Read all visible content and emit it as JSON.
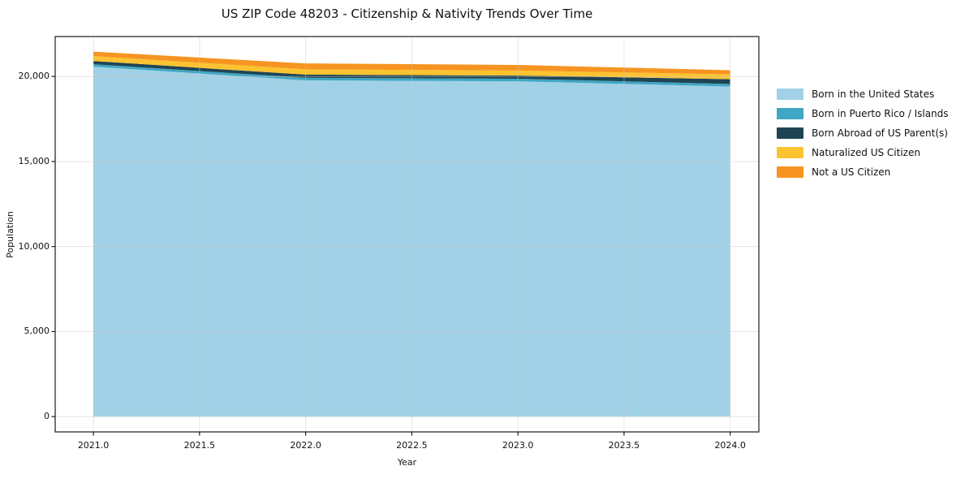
{
  "figure": {
    "background_color": "#ffffff",
    "text_color": "#111111"
  },
  "chart_data": {
    "type": "area",
    "stacked": true,
    "title": "US ZIP Code 48203 - Citizenship & Nativity Trends Over Time",
    "xlabel": "Year",
    "ylabel": "Population",
    "x": [
      2021,
      2022,
      2023,
      2024
    ],
    "series": [
      {
        "name": "Born in the United States",
        "color": "#a1d1e6",
        "values": [
          20580,
          19770,
          19720,
          19410
        ]
      },
      {
        "name": "Born in Puerto Rico / Islands",
        "color": "#3fa7c3",
        "values": [
          140,
          150,
          150,
          150
        ]
      },
      {
        "name": "Born Abroad of US Parent(s)",
        "color": "#1f4554",
        "values": [
          190,
          190,
          190,
          280
        ]
      },
      {
        "name": "Naturalized US Citizen",
        "color": "#fcc331",
        "values": [
          290,
          310,
          290,
          290
        ]
      },
      {
        "name": "Not a US Citizen",
        "color": "#f79421",
        "values": [
          260,
          350,
          330,
          240
        ]
      }
    ],
    "stacked_totals": [
      21460,
      20770,
      20680,
      20370
    ],
    "x_ticks": [
      2021.0,
      2021.5,
      2022.0,
      2022.5,
      2023.0,
      2023.5,
      2024.0
    ],
    "x_tick_labels": [
      "2021.0",
      "2021.5",
      "2022.0",
      "2022.5",
      "2023.0",
      "2023.5",
      "2024.0"
    ],
    "y_ticks": [
      0,
      5000,
      10000,
      15000,
      20000
    ],
    "y_tick_labels": [
      "0",
      "5,000",
      "10,000",
      "15,000",
      "20,000"
    ],
    "xlim": [
      2020.82,
      2024.135
    ],
    "ylim": [
      -900,
      22350
    ],
    "grid": true,
    "grid_color": "#c9c9c9",
    "spine_color": "#1c1c1c",
    "legend_position": "right-outside"
  }
}
